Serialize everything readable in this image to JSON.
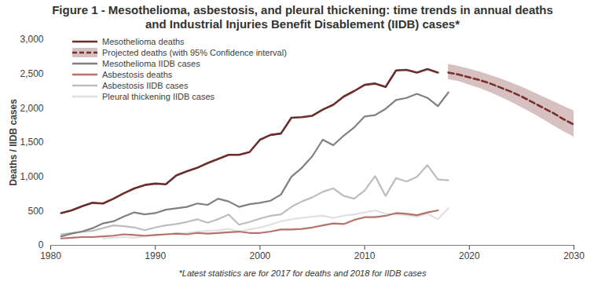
{
  "chart_data": {
    "type": "line",
    "title": "Figure 1 - Mesothelioma, asbestosis, and pleural thickening: time trends in annual deaths and Industrial Injuries Benefit Disablement (IIDB) cases*",
    "caption": "*Latest statistics are for 2017 for deaths and 2018 for IIDB cases",
    "y_label": "Deaths / IIDB cases",
    "xlim": [
      1980,
      2030
    ],
    "xticks": [
      1980,
      1990,
      2000,
      2010,
      2020,
      2030
    ],
    "ylim": [
      0,
      3000
    ],
    "yticks": [
      0,
      500,
      {
        "value": 1000,
        "label": "1,000"
      },
      {
        "value": 1500,
        "label": "1,500"
      },
      {
        "value": 2000,
        "label": "2,000"
      },
      {
        "value": 2500,
        "label": "2,500"
      },
      {
        "value": 3000,
        "label": "3,000"
      }
    ],
    "grid": false,
    "legend": "top-left",
    "x": [
      1981,
      1982,
      1983,
      1984,
      1985,
      1986,
      1987,
      1988,
      1989,
      1990,
      1991,
      1992,
      1993,
      1994,
      1995,
      1996,
      1997,
      1998,
      1999,
      2000,
      2001,
      2002,
      2003,
      2004,
      2005,
      2006,
      2007,
      2008,
      2009,
      2010,
      2011,
      2012,
      2013,
      2014,
      2015,
      2016,
      2017,
      2018,
      2019,
      2020,
      2021,
      2022,
      2023,
      2024,
      2025,
      2026,
      2027,
      2028,
      2029,
      2030
    ],
    "series": [
      {
        "name": "Mesothelioma deaths",
        "color": "#6b2c2c",
        "line_style": "solid",
        "values": [
          470,
          510,
          570,
          620,
          610,
          680,
          760,
          830,
          880,
          900,
          890,
          1020,
          1080,
          1130,
          1200,
          1260,
          1320,
          1320,
          1360,
          1540,
          1610,
          1630,
          1860,
          1870,
          1890,
          1980,
          2050,
          2170,
          2250,
          2340,
          2360,
          2310,
          2550,
          2560,
          2520,
          2570,
          2520,
          null,
          null,
          null,
          null,
          null,
          null,
          null,
          null,
          null,
          null,
          null,
          null,
          null
        ]
      },
      {
        "name": "Projected deaths (with 95% Confidence interval)",
        "color": "#7a2e2e",
        "line_style": "dashed",
        "values": [
          null,
          null,
          null,
          null,
          null,
          null,
          null,
          null,
          null,
          null,
          null,
          null,
          null,
          null,
          null,
          null,
          null,
          null,
          null,
          null,
          null,
          null,
          null,
          null,
          null,
          null,
          null,
          null,
          null,
          null,
          null,
          null,
          null,
          null,
          null,
          null,
          null,
          2520,
          2490,
          2450,
          2410,
          2360,
          2300,
          2240,
          2170,
          2090,
          2010,
          1930,
          1840,
          1760
        ],
        "lower": [
          null,
          null,
          null,
          null,
          null,
          null,
          null,
          null,
          null,
          null,
          null,
          null,
          null,
          null,
          null,
          null,
          null,
          null,
          null,
          null,
          null,
          null,
          null,
          null,
          null,
          null,
          null,
          null,
          null,
          null,
          null,
          null,
          null,
          null,
          null,
          null,
          null,
          2420,
          2390,
          2340,
          2290,
          2230,
          2160,
          2090,
          2010,
          1930,
          1840,
          1750,
          1660,
          1580
        ],
        "upper": [
          null,
          null,
          null,
          null,
          null,
          null,
          null,
          null,
          null,
          null,
          null,
          null,
          null,
          null,
          null,
          null,
          null,
          null,
          null,
          null,
          null,
          null,
          null,
          null,
          null,
          null,
          null,
          null,
          null,
          null,
          null,
          null,
          null,
          null,
          null,
          null,
          null,
          2640,
          2610,
          2570,
          2530,
          2480,
          2430,
          2370,
          2310,
          2240,
          2170,
          2100,
          2030,
          1960
        ]
      },
      {
        "name": "Mesothelioma IIDB cases",
        "color": "#808080",
        "line_style": "solid",
        "values": [
          130,
          170,
          200,
          250,
          320,
          350,
          420,
          480,
          450,
          470,
          520,
          540,
          560,
          610,
          590,
          680,
          640,
          560,
          600,
          620,
          650,
          740,
          1000,
          1130,
          1300,
          1540,
          1460,
          1600,
          1720,
          1880,
          1900,
          1990,
          2120,
          2150,
          2210,
          2150,
          2030,
          2230,
          null,
          null,
          null,
          null,
          null,
          null,
          null,
          null,
          null,
          null,
          null,
          null
        ]
      },
      {
        "name": "Asbestosis deaths",
        "color": "#b5726c",
        "line_style": "solid",
        "values": [
          100,
          110,
          120,
          120,
          130,
          140,
          160,
          150,
          140,
          150,
          160,
          170,
          160,
          180,
          170,
          180,
          190,
          200,
          180,
          180,
          200,
          230,
          230,
          240,
          260,
          290,
          320,
          310,
          370,
          410,
          410,
          430,
          470,
          460,
          440,
          480,
          510,
          null,
          null,
          null,
          null,
          null,
          null,
          null,
          null,
          null,
          null,
          null,
          null,
          null
        ]
      },
      {
        "name": "Asbestosis IIDB cases",
        "color": "#bdbdbd",
        "line_style": "solid",
        "values": [
          160,
          180,
          200,
          210,
          250,
          290,
          280,
          260,
          220,
          260,
          290,
          310,
          340,
          380,
          330,
          380,
          450,
          300,
          340,
          390,
          430,
          450,
          560,
          640,
          700,
          780,
          830,
          720,
          680,
          800,
          1010,
          720,
          980,
          930,
          1000,
          1170,
          960,
          950,
          null,
          null,
          null,
          null,
          null,
          null,
          null,
          null,
          null,
          null,
          null,
          null
        ]
      },
      {
        "name": "Pleural thickening IIDB cases",
        "color": "#e0e0e0",
        "line_style": "solid",
        "values": [
          null,
          null,
          null,
          null,
          100,
          110,
          120,
          110,
          130,
          150,
          160,
          170,
          180,
          200,
          210,
          220,
          240,
          200,
          230,
          260,
          300,
          350,
          380,
          400,
          420,
          430,
          400,
          430,
          450,
          480,
          510,
          460,
          450,
          440,
          420,
          460,
          380,
          540,
          null,
          null,
          null,
          null,
          null,
          null,
          null,
          null,
          null,
          null,
          null,
          null
        ]
      }
    ]
  }
}
